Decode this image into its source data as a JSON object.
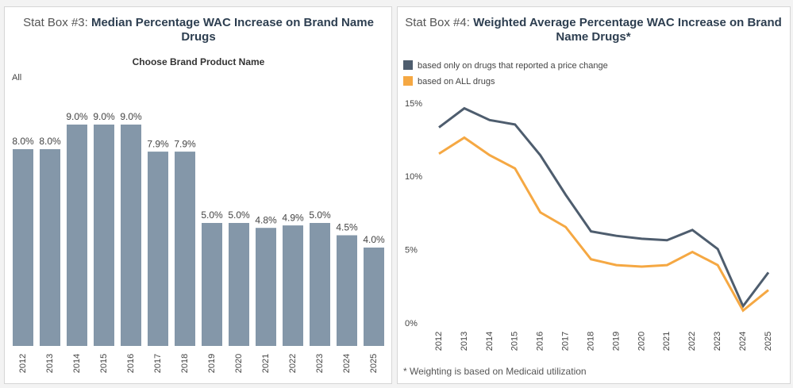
{
  "chart_data": [
    {
      "type": "bar",
      "title_prefix": "Stat Box #3:",
      "title": "Median Percentage WAC Increase on Brand Name Drugs",
      "filter_label": "Choose Brand Product Name",
      "filter_value": "All",
      "categories": [
        "2012",
        "2013",
        "2014",
        "2015",
        "2016",
        "2017",
        "2018",
        "2019",
        "2020",
        "2021",
        "2022",
        "2023",
        "2024",
        "2025"
      ],
      "values": [
        8.0,
        8.0,
        9.0,
        9.0,
        9.0,
        7.9,
        7.9,
        5.0,
        5.0,
        4.8,
        4.9,
        5.0,
        4.5,
        4.0
      ],
      "value_labels": [
        "8.0%",
        "8.0%",
        "9.0%",
        "9.0%",
        "9.0%",
        "7.9%",
        "7.9%",
        "5.0%",
        "5.0%",
        "4.8%",
        "4.9%",
        "5.0%",
        "4.5%",
        "4.0%"
      ],
      "color": "#8497a9",
      "ylim": [
        0,
        9.5
      ],
      "grid": false
    },
    {
      "type": "line",
      "title_prefix": "Stat Box #4:",
      "title": "Weighted Average Percentage WAC Increase on Brand Name Drugs*",
      "footnote": "* Weighting is based on Medicaid utilization",
      "x": [
        "2012",
        "2013",
        "2014",
        "2015",
        "2016",
        "2017",
        "2018",
        "2019",
        "2020",
        "2021",
        "2022",
        "2023",
        "2024",
        "2025"
      ],
      "series": [
        {
          "name": "based only on drugs that reported a price change",
          "color": "#4e5d6e",
          "values": [
            13.4,
            14.7,
            13.9,
            13.6,
            11.5,
            8.8,
            6.3,
            6.0,
            5.8,
            5.7,
            6.4,
            5.1,
            1.2,
            3.5
          ]
        },
        {
          "name": "based on ALL drugs",
          "color": "#f5a843",
          "values": [
            11.6,
            12.7,
            11.5,
            10.6,
            7.6,
            6.6,
            4.4,
            4.0,
            3.9,
            4.0,
            4.9,
            4.0,
            0.9,
            2.3
          ]
        }
      ],
      "ylim": [
        0,
        15
      ],
      "yticks": [
        {
          "value": 0,
          "label": "0%"
        },
        {
          "value": 5,
          "label": "5%"
        },
        {
          "value": 10,
          "label": "10%"
        },
        {
          "value": 15,
          "label": "15%"
        }
      ],
      "grid": false,
      "legend": "top-left"
    }
  ]
}
